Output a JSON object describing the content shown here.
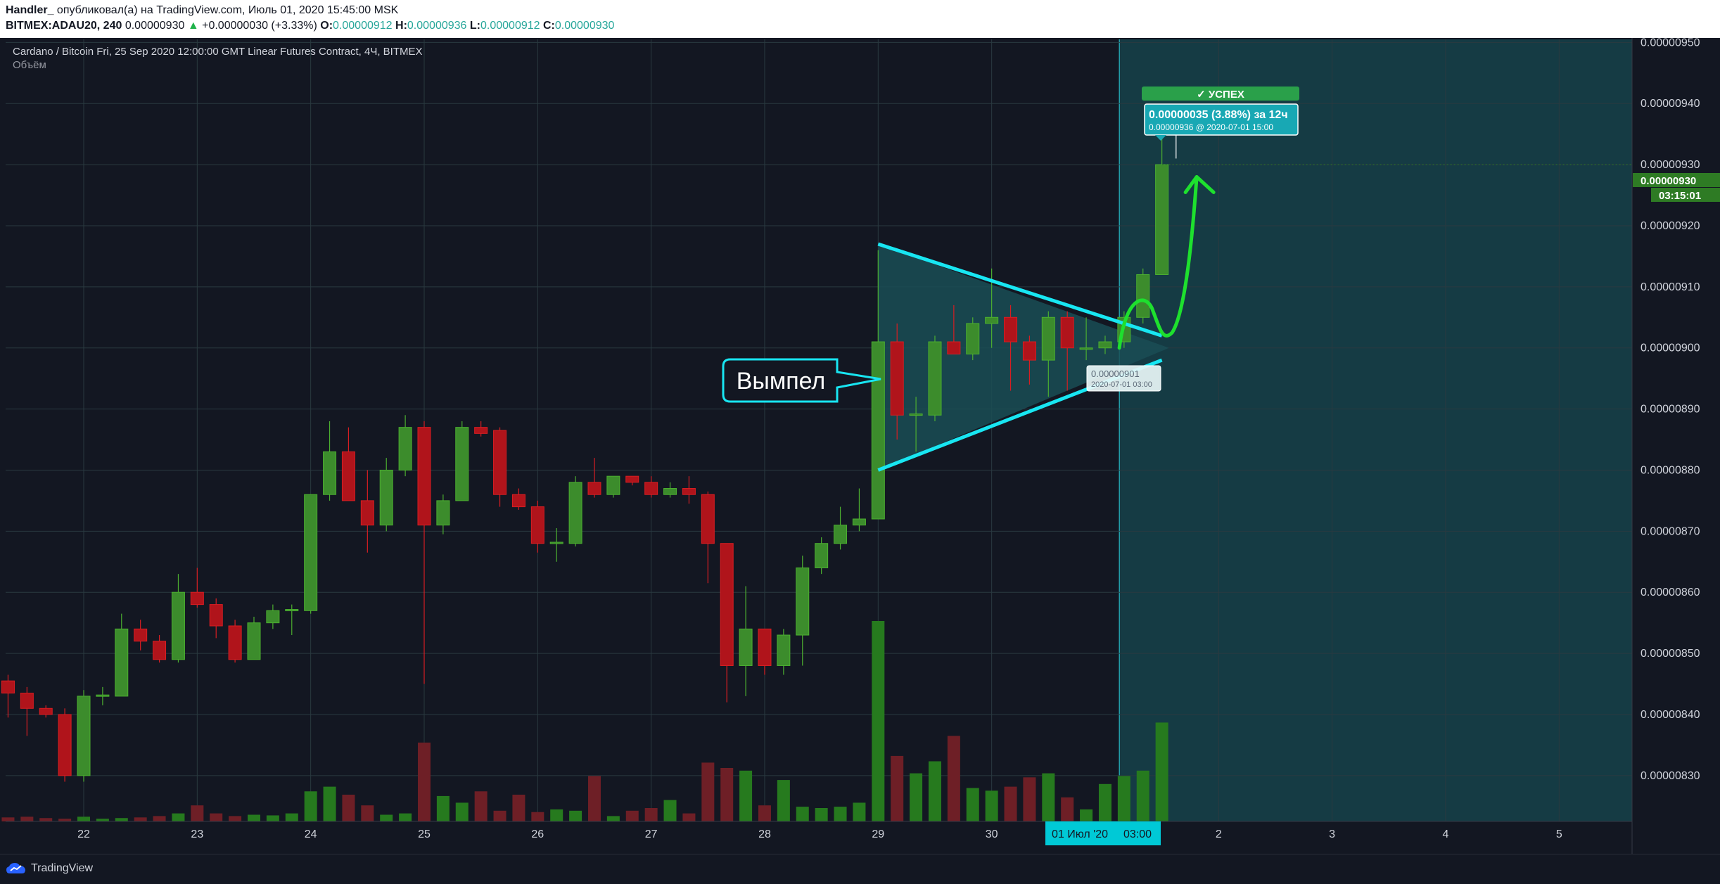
{
  "publication": {
    "author": "Handler_",
    "published_text": "опубликовал(а) на TradingView.com, Июль 01, 2020 15:45:00 MSK"
  },
  "ticker_line": {
    "symbol": "BITMEX:ADAU20, 240",
    "last": "0.00000930",
    "arrow": "▲",
    "change": "+0.00000030 (+3.33%)",
    "o_label": "O:",
    "o": "0.00000912",
    "h_label": "H:",
    "h": "0.00000936",
    "l_label": "L:",
    "l": "0.00000912",
    "c_label": "C:",
    "c": "0.00000930"
  },
  "chart_data": {
    "type": "candlestick",
    "title": "Cardano / Bitcoin Fri, 25 Sep 2020 12:00:00 GMT Linear Futures Contract, 4Ч, BITMEX",
    "volume_label": "Объём",
    "timeframe_hours": 4,
    "ylim": [
      8.225e-06,
      9.505e-06
    ],
    "y_ticks": [
      "0.00000950",
      "0.00000940",
      "0.00000930",
      "0.00000920",
      "0.00000910",
      "0.00000900",
      "0.00000890",
      "0.00000880",
      "0.00000870",
      "0.00000860",
      "0.00000850",
      "0.00000840",
      "0.00000830"
    ],
    "x_ticks": [
      {
        "label": "22",
        "day": "2020-06-22"
      },
      {
        "label": "23",
        "day": "2020-06-23"
      },
      {
        "label": "24",
        "day": "2020-06-24"
      },
      {
        "label": "25",
        "day": "2020-06-25"
      },
      {
        "label": "26",
        "day": "2020-06-26"
      },
      {
        "label": "27",
        "day": "2020-06-27"
      },
      {
        "label": "28",
        "day": "2020-06-28"
      },
      {
        "label": "29",
        "day": "2020-06-29"
      },
      {
        "label": "30",
        "day": "2020-06-30"
      },
      {
        "label": "2",
        "day": "2020-07-02"
      },
      {
        "label": "3",
        "day": "2020-07-03"
      },
      {
        "label": "4",
        "day": "2020-07-04"
      },
      {
        "label": "5",
        "day": "2020-07-05"
      }
    ],
    "candles": [
      {
        "t": "2020-06-21 08:00",
        "o": 8.455e-06,
        "h": 8.465e-06,
        "l": 8.395e-06,
        "c": 8.435e-06,
        "v": 6
      },
      {
        "t": "2020-06-21 12:00",
        "o": 8.435e-06,
        "h": 8.445e-06,
        "l": 8.365e-06,
        "c": 8.41e-06,
        "v": 7
      },
      {
        "t": "2020-06-21 16:00",
        "o": 8.41e-06,
        "h": 8.415e-06,
        "l": 8.395e-06,
        "c": 8.4e-06,
        "v": 5
      },
      {
        "t": "2020-06-21 20:00",
        "o": 8.4e-06,
        "h": 8.41e-06,
        "l": 8.29e-06,
        "c": 8.3e-06,
        "v": 4
      },
      {
        "t": "2020-06-22 00:00",
        "o": 8.3e-06,
        "h": 8.44e-06,
        "l": 8.29e-06,
        "c": 8.43e-06,
        "v": 7
      },
      {
        "t": "2020-06-22 04:00",
        "o": 8.43e-06,
        "h": 8.445e-06,
        "l": 8.415e-06,
        "c": 8.432e-06,
        "v": 4
      },
      {
        "t": "2020-06-22 08:00",
        "o": 8.43e-06,
        "h": 8.565e-06,
        "l": 8.43e-06,
        "c": 8.54e-06,
        "v": 5
      },
      {
        "t": "2020-06-22 12:00",
        "o": 8.54e-06,
        "h": 8.555e-06,
        "l": 8.505e-06,
        "c": 8.52e-06,
        "v": 6
      },
      {
        "t": "2020-06-22 16:00",
        "o": 8.52e-06,
        "h": 8.53e-06,
        "l": 8.485e-06,
        "c": 8.49e-06,
        "v": 8
      },
      {
        "t": "2020-06-22 20:00",
        "o": 8.49e-06,
        "h": 8.63e-06,
        "l": 8.485e-06,
        "c": 8.6e-06,
        "v": 12
      },
      {
        "t": "2020-06-23 00:00",
        "o": 8.6e-06,
        "h": 8.64e-06,
        "l": 8.575e-06,
        "c": 8.58e-06,
        "v": 24
      },
      {
        "t": "2020-06-23 04:00",
        "o": 8.58e-06,
        "h": 8.59e-06,
        "l": 8.525e-06,
        "c": 8.545e-06,
        "v": 12
      },
      {
        "t": "2020-06-23 08:00",
        "o": 8.545e-06,
        "h": 8.555e-06,
        "l": 8.485e-06,
        "c": 8.49e-06,
        "v": 8
      },
      {
        "t": "2020-06-23 12:00",
        "o": 8.49e-06,
        "h": 8.56e-06,
        "l": 8.49e-06,
        "c": 8.55e-06,
        "v": 10
      },
      {
        "t": "2020-06-23 16:00",
        "o": 8.55e-06,
        "h": 8.58e-06,
        "l": 8.54e-06,
        "c": 8.57e-06,
        "v": 9
      },
      {
        "t": "2020-06-23 20:00",
        "o": 8.57e-06,
        "h": 8.58e-06,
        "l": 8.53e-06,
        "c": 8.572e-06,
        "v": 12
      },
      {
        "t": "2020-06-24 00:00",
        "o": 8.57e-06,
        "h": 8.76e-06,
        "l": 8.565e-06,
        "c": 8.76e-06,
        "v": 45
      },
      {
        "t": "2020-06-24 04:00",
        "o": 8.76e-06,
        "h": 8.88e-06,
        "l": 8.75e-06,
        "c": 8.83e-06,
        "v": 52
      },
      {
        "t": "2020-06-24 08:00",
        "o": 8.83e-06,
        "h": 8.87e-06,
        "l": 8.75e-06,
        "c": 8.75e-06,
        "v": 40
      },
      {
        "t": "2020-06-24 12:00",
        "o": 8.75e-06,
        "h": 8.8e-06,
        "l": 8.665e-06,
        "c": 8.71e-06,
        "v": 24
      },
      {
        "t": "2020-06-24 16:00",
        "o": 8.71e-06,
        "h": 8.82e-06,
        "l": 8.7e-06,
        "c": 8.8e-06,
        "v": 10
      },
      {
        "t": "2020-06-24 20:00",
        "o": 8.8e-06,
        "h": 8.89e-06,
        "l": 8.79e-06,
        "c": 8.87e-06,
        "v": 12
      },
      {
        "t": "2020-06-25 00:00",
        "o": 8.87e-06,
        "h": 8.88e-06,
        "l": 8.45e-06,
        "c": 8.71e-06,
        "v": 118
      },
      {
        "t": "2020-06-25 04:00",
        "o": 8.71e-06,
        "h": 8.76e-06,
        "l": 8.695e-06,
        "c": 8.75e-06,
        "v": 38
      },
      {
        "t": "2020-06-25 08:00",
        "o": 8.75e-06,
        "h": 8.88e-06,
        "l": 8.75e-06,
        "c": 8.87e-06,
        "v": 28
      },
      {
        "t": "2020-06-25 12:00",
        "o": 8.87e-06,
        "h": 8.88e-06,
        "l": 8.855e-06,
        "c": 8.86e-06,
        "v": 45
      },
      {
        "t": "2020-06-25 16:00",
        "o": 8.865e-06,
        "h": 8.87e-06,
        "l": 8.74e-06,
        "c": 8.76e-06,
        "v": 16
      },
      {
        "t": "2020-06-25 20:00",
        "o": 8.76e-06,
        "h": 8.77e-06,
        "l": 8.735e-06,
        "c": 8.74e-06,
        "v": 40
      },
      {
        "t": "2020-06-26 00:00",
        "o": 8.74e-06,
        "h": 8.75e-06,
        "l": 8.665e-06,
        "c": 8.68e-06,
        "v": 14
      },
      {
        "t": "2020-06-26 04:00",
        "o": 8.68e-06,
        "h": 8.705e-06,
        "l": 8.65e-06,
        "c": 8.682e-06,
        "v": 18
      },
      {
        "t": "2020-06-26 08:00",
        "o": 8.68e-06,
        "h": 8.79e-06,
        "l": 8.675e-06,
        "c": 8.78e-06,
        "v": 16
      },
      {
        "t": "2020-06-26 12:00",
        "o": 8.78e-06,
        "h": 8.82e-06,
        "l": 8.755e-06,
        "c": 8.76e-06,
        "v": 68
      },
      {
        "t": "2020-06-26 16:00",
        "o": 8.76e-06,
        "h": 8.79e-06,
        "l": 8.755e-06,
        "c": 8.79e-06,
        "v": 8
      },
      {
        "t": "2020-06-26 20:00",
        "o": 8.79e-06,
        "h": 8.79e-06,
        "l": 8.775e-06,
        "c": 8.78e-06,
        "v": 16
      },
      {
        "t": "2020-06-27 00:00",
        "o": 8.78e-06,
        "h": 8.79e-06,
        "l": 8.755e-06,
        "c": 8.76e-06,
        "v": 20
      },
      {
        "t": "2020-06-27 04:00",
        "o": 8.76e-06,
        "h": 8.78e-06,
        "l": 8.755e-06,
        "c": 8.77e-06,
        "v": 32
      },
      {
        "t": "2020-06-27 08:00",
        "o": 8.77e-06,
        "h": 8.79e-06,
        "l": 8.745e-06,
        "c": 8.76e-06,
        "v": 12
      },
      {
        "t": "2020-06-27 12:00",
        "o": 8.76e-06,
        "h": 8.765e-06,
        "l": 8.615e-06,
        "c": 8.68e-06,
        "v": 88
      },
      {
        "t": "2020-06-27 16:00",
        "o": 8.68e-06,
        "h": 8.68e-06,
        "l": 8.42e-06,
        "c": 8.48e-06,
        "v": 80
      },
      {
        "t": "2020-06-27 20:00",
        "o": 8.48e-06,
        "h": 8.61e-06,
        "l": 8.43e-06,
        "c": 8.54e-06,
        "v": 76
      },
      {
        "t": "2020-06-28 00:00",
        "o": 8.54e-06,
        "h": 8.54e-06,
        "l": 8.465e-06,
        "c": 8.48e-06,
        "v": 24
      },
      {
        "t": "2020-06-28 04:00",
        "o": 8.48e-06,
        "h": 8.54e-06,
        "l": 8.465e-06,
        "c": 8.53e-06,
        "v": 62
      },
      {
        "t": "2020-06-28 08:00",
        "o": 8.53e-06,
        "h": 8.66e-06,
        "l": 8.48e-06,
        "c": 8.64e-06,
        "v": 22
      },
      {
        "t": "2020-06-28 12:00",
        "o": 8.64e-06,
        "h": 8.69e-06,
        "l": 8.63e-06,
        "c": 8.68e-06,
        "v": 20
      },
      {
        "t": "2020-06-28 16:00",
        "o": 8.68e-06,
        "h": 8.74e-06,
        "l": 8.67e-06,
        "c": 8.71e-06,
        "v": 22
      },
      {
        "t": "2020-06-28 20:00",
        "o": 8.71e-06,
        "h": 8.77e-06,
        "l": 8.7e-06,
        "c": 8.72e-06,
        "v": 28
      },
      {
        "t": "2020-06-29 00:00",
        "o": 8.72e-06,
        "h": 9.16e-06,
        "l": 8.72e-06,
        "c": 9.01e-06,
        "v": 300
      },
      {
        "t": "2020-06-29 04:00",
        "o": 9.01e-06,
        "h": 9.04e-06,
        "l": 8.85e-06,
        "c": 8.89e-06,
        "v": 98
      },
      {
        "t": "2020-06-29 08:00",
        "o": 8.89e-06,
        "h": 8.92e-06,
        "l": 8.83e-06,
        "c": 8.892e-06,
        "v": 72
      },
      {
        "t": "2020-06-29 12:00",
        "o": 8.89e-06,
        "h": 9.02e-06,
        "l": 8.88e-06,
        "c": 9.01e-06,
        "v": 90
      },
      {
        "t": "2020-06-29 16:00",
        "o": 9.01e-06,
        "h": 9.07e-06,
        "l": 8.99e-06,
        "c": 8.99e-06,
        "v": 128
      },
      {
        "t": "2020-06-29 20:00",
        "o": 8.99e-06,
        "h": 9.05e-06,
        "l": 8.98e-06,
        "c": 9.04e-06,
        "v": 50
      },
      {
        "t": "2020-06-30 00:00",
        "o": 9.04e-06,
        "h": 9.13e-06,
        "l": 9e-06,
        "c": 9.05e-06,
        "v": 46
      },
      {
        "t": "2020-06-30 04:00",
        "o": 9.05e-06,
        "h": 9.07e-06,
        "l": 8.93e-06,
        "c": 9.01e-06,
        "v": 52
      },
      {
        "t": "2020-06-30 08:00",
        "o": 9.01e-06,
        "h": 9.02e-06,
        "l": 8.94e-06,
        "c": 8.98e-06,
        "v": 66
      },
      {
        "t": "2020-06-30 12:00",
        "o": 8.98e-06,
        "h": 9.06e-06,
        "l": 8.92e-06,
        "c": 9.05e-06,
        "v": 72
      },
      {
        "t": "2020-06-30 16:00",
        "o": 9.05e-06,
        "h": 9.06e-06,
        "l": 8.93e-06,
        "c": 9e-06,
        "v": 36
      },
      {
        "t": "2020-06-30 20:00",
        "o": 9e-06,
        "h": 9.05e-06,
        "l": 8.98e-06,
        "c": 9e-06,
        "v": 18
      },
      {
        "t": "2020-07-01 00:00",
        "o": 9e-06,
        "h": 9.02e-06,
        "l": 8.99e-06,
        "c": 9.01e-06,
        "v": 56
      },
      {
        "t": "2020-07-01 04:00",
        "o": 9.01e-06,
        "h": 9.06e-06,
        "l": 9e-06,
        "c": 9.05e-06,
        "v": 68
      },
      {
        "t": "2020-07-01 08:00",
        "o": 9.05e-06,
        "h": 9.13e-06,
        "l": 9.04e-06,
        "c": 9.12e-06,
        "v": 76
      },
      {
        "t": "2020-07-01 12:00",
        "o": 9.12e-06,
        "h": 9.36e-06,
        "l": 9.12e-06,
        "c": 9.3e-06,
        "v": 148
      }
    ],
    "annotations": {
      "pattern_label": "Вымпел",
      "success_label": "✓ УСПЕХ",
      "target_text": "0.00000035 (3.88%) за 12ч",
      "target_detail": "0.00000936 @ 2020-07-01  15:00",
      "entry_price": "0.00000901",
      "entry_time": "2020-07-01 03:00",
      "last_price_tag": "0.00000930",
      "countdown": "03:15:01",
      "crosshair_date": "01 Июл '20",
      "crosshair_time": "03:00"
    },
    "colors": {
      "up": "#3c8c2c",
      "up_border": "#4caf30",
      "down": "#b0141b",
      "down_border": "#d81e22",
      "vol_up": "#267a1e",
      "vol_down": "#6e1f26",
      "pattern_lines": "#18e6f2",
      "projection": "#1ee02e",
      "price_tag": "#2e7b24",
      "success": "#2aa04a",
      "background": "#131722",
      "future_shade": "#175a60"
    }
  },
  "footer": {
    "brand": "TradingView"
  }
}
